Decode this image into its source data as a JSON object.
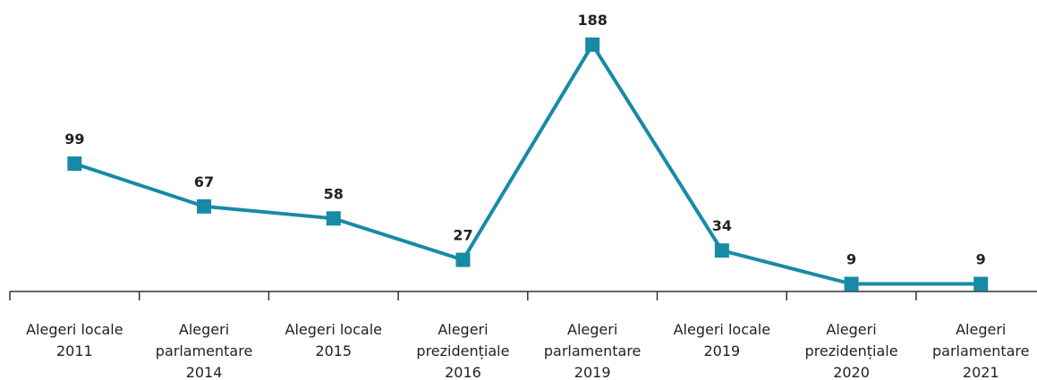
{
  "chart_data": {
    "type": "line",
    "categories": [
      "Alegeri locale\n2011",
      "Alegeri\nparlamentare\n2014",
      "Alegeri locale\n2015",
      "Alegeri\nprezidențiale\n2016",
      "Alegeri\nparlamentare\n2019",
      "Alegeri locale\n2019",
      "Alegeri\nprezidențiale\n2020",
      "Alegeri\nparlamentare\n2021"
    ],
    "values": [
      99,
      67,
      58,
      27,
      188,
      34,
      9,
      9
    ],
    "color": "#178aa6",
    "ylim": [
      0,
      200
    ]
  }
}
